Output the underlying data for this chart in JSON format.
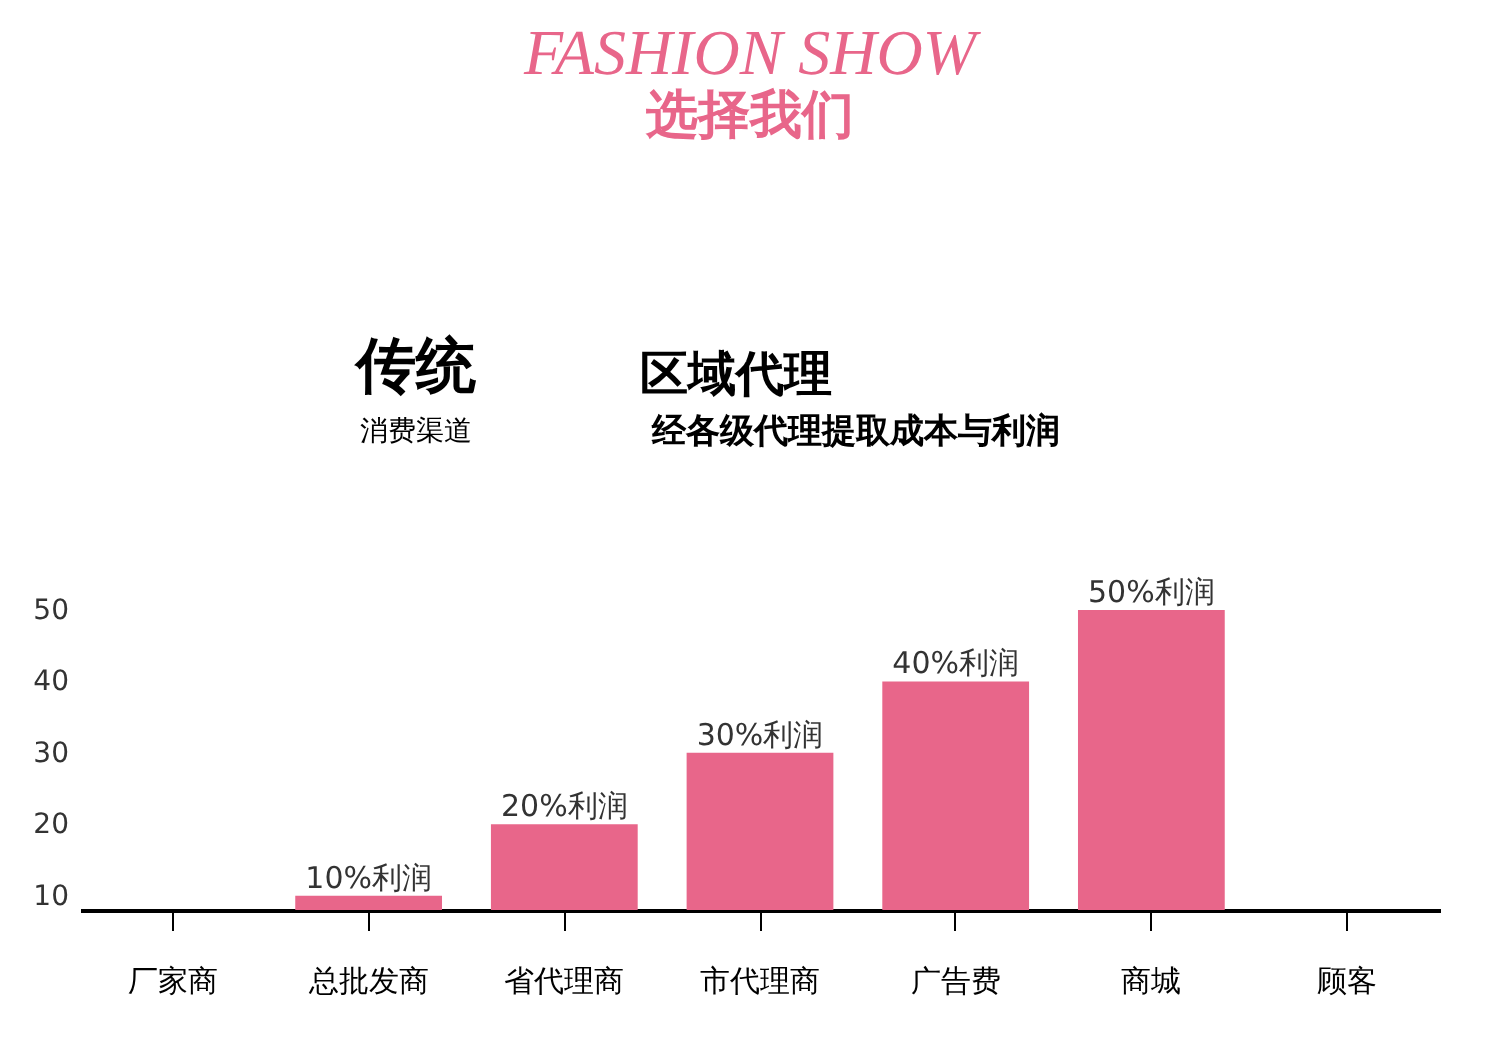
{
  "chart_data": {
    "type": "bar",
    "title": "区域代理",
    "subtitle": "经各级代理提取成本与利润",
    "annotations": [
      "FASHION SHOW",
      "选择我们",
      "传统",
      "消费渠道"
    ],
    "categories": [
      "厂家商",
      "总批发商",
      "省代理商",
      "市代理商",
      "广告费",
      "商城",
      "顾客"
    ],
    "values": [
      null,
      10,
      20,
      30,
      40,
      50,
      null
    ],
    "value_labels": [
      null,
      "10%利润",
      "20%利润",
      "30%利润",
      "40%利润",
      "50%利润",
      null
    ],
    "color": "#e8668a",
    "ylim": [
      8,
      50
    ],
    "yticks": [
      10,
      20,
      30,
      40,
      50
    ]
  }
}
